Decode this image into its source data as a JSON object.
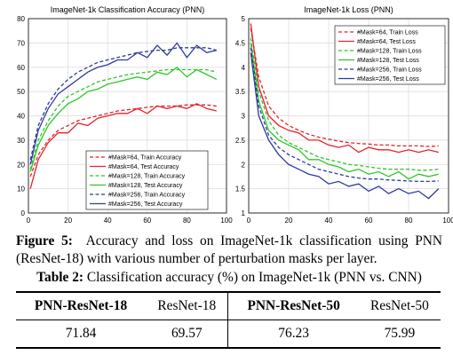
{
  "chart_data": [
    {
      "type": "line",
      "title": "ImageNet-1k Classification Accuracy (PNN)",
      "xlim": [
        0,
        100
      ],
      "ylim": [
        0,
        80
      ],
      "xticks": [
        0,
        20,
        40,
        60,
        80,
        100
      ],
      "yticks": [
        0,
        10,
        20,
        30,
        40,
        50,
        60,
        70,
        80
      ],
      "grid": true,
      "legend_position": "bottom-right",
      "legend": [
        "#Mask=64, Train Accuracy",
        "#Mask=64, Test Accuracy",
        "#Mask=128, Train Accuracy",
        "#Mask=128, Test Accuracy",
        "#Mask=256, Train Accuracy",
        "#Mask=256, Test Accuracy"
      ],
      "series": [
        {
          "name": "#Mask=64, Train Accuracy",
          "color": "#e8212a",
          "dash": true,
          "x": [
            1,
            5,
            10,
            15,
            20,
            25,
            30,
            35,
            40,
            45,
            50,
            55,
            60,
            65,
            70,
            75,
            80,
            85,
            90,
            95
          ],
          "values": [
            15,
            24,
            30,
            34,
            36,
            38,
            39,
            40,
            41,
            42,
            42.5,
            43,
            43.5,
            44,
            44,
            44,
            44.5,
            44.5,
            44.5,
            44
          ]
        },
        {
          "name": "#Mask=64, Test Accuracy",
          "color": "#e8212a",
          "dash": false,
          "x": [
            1,
            5,
            10,
            15,
            20,
            25,
            30,
            35,
            40,
            45,
            50,
            55,
            60,
            65,
            70,
            75,
            80,
            85,
            90,
            95
          ],
          "values": [
            10,
            22,
            29,
            33,
            33,
            37,
            36,
            39,
            40,
            41,
            41,
            43,
            41,
            44,
            43,
            44,
            43,
            45,
            43,
            42
          ]
        },
        {
          "name": "#Mask=128, Train Accuracy",
          "color": "#2fc62a",
          "dash": true,
          "x": [
            1,
            5,
            10,
            15,
            20,
            25,
            30,
            35,
            40,
            45,
            50,
            55,
            60,
            65,
            70,
            75,
            80,
            85,
            90,
            95
          ],
          "values": [
            18,
            30,
            38,
            44,
            48,
            50,
            52,
            54,
            55,
            56,
            57,
            57.5,
            58,
            58.5,
            59,
            59,
            59,
            59,
            59,
            58
          ]
        },
        {
          "name": "#Mask=128, Test Accuracy",
          "color": "#2fc62a",
          "dash": false,
          "x": [
            1,
            5,
            10,
            15,
            20,
            25,
            30,
            35,
            40,
            45,
            50,
            55,
            60,
            65,
            70,
            75,
            80,
            85,
            90,
            95
          ],
          "values": [
            17,
            28,
            36,
            41,
            45,
            47,
            50,
            51,
            53,
            54,
            55,
            56,
            55,
            58,
            57,
            60,
            56,
            59,
            57,
            55
          ]
        },
        {
          "name": "#Mask=256, Train Accuracy",
          "color": "#2e3b9c",
          "dash": true,
          "x": [
            1,
            5,
            10,
            15,
            20,
            25,
            30,
            35,
            40,
            45,
            50,
            55,
            60,
            65,
            70,
            75,
            80,
            85,
            90,
            95
          ],
          "values": [
            22,
            36,
            45,
            51,
            55,
            58,
            60,
            62,
            63,
            64,
            65,
            66,
            66.5,
            67,
            67,
            68,
            68,
            68,
            68,
            67
          ]
        },
        {
          "name": "#Mask=256, Test Accuracy",
          "color": "#2e3b9c",
          "dash": false,
          "x": [
            1,
            5,
            10,
            15,
            20,
            25,
            30,
            35,
            40,
            45,
            50,
            55,
            60,
            65,
            70,
            75,
            80,
            85,
            90,
            95
          ],
          "values": [
            20,
            34,
            43,
            49,
            52,
            55,
            58,
            60,
            61,
            63,
            63,
            66,
            64,
            69,
            65,
            70,
            64,
            69,
            66,
            67
          ]
        }
      ]
    },
    {
      "type": "line",
      "title": "ImageNet-1k Loss (PNN)",
      "xlim": [
        0,
        100
      ],
      "ylim": [
        1,
        5
      ],
      "xticks": [
        0,
        20,
        40,
        60,
        80,
        100
      ],
      "yticks": [
        1,
        1.5,
        2,
        2.5,
        3,
        3.5,
        4,
        4.5,
        5
      ],
      "grid": true,
      "legend_position": "top-right",
      "legend": [
        "#Mask=64, Train Loss",
        "#Mask=64, Test Loss",
        "#Mask=128, Train Loss",
        "#Mask=128, Test Loss",
        "#Mask=256, Train Loss",
        "#Mask=256, Test Loss"
      ],
      "series": [
        {
          "name": "#Mask=64, Train Loss",
          "color": "#e8212a",
          "dash": true,
          "x": [
            1,
            5,
            10,
            15,
            20,
            25,
            30,
            35,
            40,
            45,
            50,
            55,
            60,
            65,
            70,
            75,
            80,
            85,
            90,
            95
          ],
          "values": [
            4.8,
            3.8,
            3.2,
            2.95,
            2.8,
            2.7,
            2.62,
            2.56,
            2.52,
            2.48,
            2.45,
            2.43,
            2.42,
            2.4,
            2.4,
            2.38,
            2.38,
            2.38,
            2.37,
            2.38
          ]
        },
        {
          "name": "#Mask=64, Test Loss",
          "color": "#e8212a",
          "dash": false,
          "x": [
            1,
            5,
            10,
            15,
            20,
            25,
            30,
            35,
            40,
            45,
            50,
            55,
            60,
            65,
            70,
            75,
            80,
            85,
            90,
            95
          ],
          "values": [
            4.9,
            3.6,
            3.0,
            2.8,
            2.7,
            2.65,
            2.5,
            2.5,
            2.4,
            2.35,
            2.4,
            2.25,
            2.35,
            2.3,
            2.3,
            2.25,
            2.3,
            2.25,
            2.3,
            2.25
          ]
        },
        {
          "name": "#Mask=128, Train Loss",
          "color": "#2fc62a",
          "dash": true,
          "x": [
            1,
            5,
            10,
            15,
            20,
            25,
            30,
            35,
            40,
            45,
            50,
            55,
            60,
            65,
            70,
            75,
            80,
            85,
            90,
            95
          ],
          "values": [
            4.6,
            3.5,
            2.9,
            2.6,
            2.45,
            2.35,
            2.25,
            2.15,
            2.1,
            2.05,
            2.0,
            1.98,
            1.95,
            1.92,
            1.9,
            1.9,
            1.9,
            1.88,
            1.88,
            1.9
          ]
        },
        {
          "name": "#Mask=128, Test Loss",
          "color": "#2fc62a",
          "dash": false,
          "x": [
            1,
            5,
            10,
            15,
            20,
            25,
            30,
            35,
            40,
            45,
            50,
            55,
            60,
            65,
            70,
            75,
            80,
            85,
            90,
            95
          ],
          "values": [
            4.5,
            3.3,
            2.7,
            2.5,
            2.4,
            2.3,
            2.1,
            2.1,
            2.0,
            1.95,
            1.85,
            1.9,
            1.8,
            1.85,
            1.75,
            1.85,
            1.7,
            1.8,
            1.75,
            1.8
          ]
        },
        {
          "name": "#Mask=256, Train Loss",
          "color": "#2e3b9c",
          "dash": true,
          "x": [
            1,
            5,
            10,
            15,
            20,
            25,
            30,
            35,
            40,
            45,
            50,
            55,
            60,
            65,
            70,
            75,
            80,
            85,
            90,
            95
          ],
          "values": [
            4.4,
            3.2,
            2.6,
            2.35,
            2.2,
            2.1,
            2.0,
            1.9,
            1.85,
            1.8,
            1.75,
            1.72,
            1.7,
            1.7,
            1.68,
            1.67,
            1.66,
            1.65,
            1.65,
            1.66
          ]
        },
        {
          "name": "#Mask=256, Test Loss",
          "color": "#2e3b9c",
          "dash": false,
          "x": [
            1,
            5,
            10,
            15,
            20,
            25,
            30,
            35,
            40,
            45,
            50,
            55,
            60,
            65,
            70,
            75,
            80,
            85,
            90,
            95
          ],
          "values": [
            4.3,
            3.0,
            2.5,
            2.2,
            2.0,
            1.9,
            1.8,
            1.75,
            1.6,
            1.65,
            1.55,
            1.6,
            1.45,
            1.55,
            1.4,
            1.5,
            1.4,
            1.45,
            1.3,
            1.5
          ]
        }
      ]
    }
  ],
  "figure_caption": {
    "label": "Figure 5:",
    "text": "Accuracy and loss on ImageNet-1k classification using PNN (ResNet-18) with various number of perturbation masks per layer."
  },
  "table": {
    "label": "Table 2:",
    "caption": "Classification accuracy (%) on ImageNet-1k (PNN vs. CNN)",
    "headers": [
      "PNN-ResNet-18",
      "ResNet-18",
      "PNN-ResNet-50",
      "ResNet-50"
    ],
    "values": [
      "71.84",
      "69.57",
      "76.23",
      "75.99"
    ]
  }
}
